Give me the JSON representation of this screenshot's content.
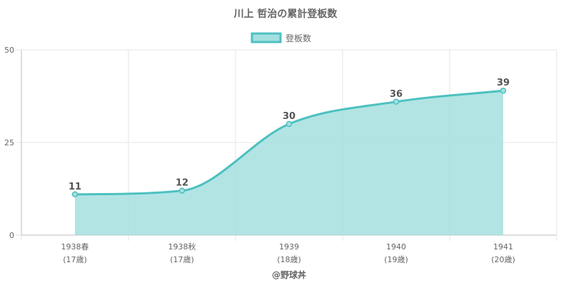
{
  "chart_data": {
    "type": "area",
    "title": "川上 哲治の累計登板数",
    "legend": {
      "position": "top",
      "label": "登板数"
    },
    "categories": [
      [
        "1938春",
        "(17歳)"
      ],
      [
        "1938秋",
        "(17歳)"
      ],
      [
        "1939",
        "(18歳)"
      ],
      [
        "1940",
        "(19歳)"
      ],
      [
        "1941",
        "(20歳)"
      ]
    ],
    "series": [
      {
        "name": "登板数",
        "values": [
          11,
          12,
          30,
          36,
          39
        ]
      }
    ],
    "ylim": [
      0,
      50
    ],
    "yticks": [
      0,
      25,
      50
    ],
    "grid": true,
    "colors": {
      "line": "#4dc0c0",
      "fill": "#a4dfdf",
      "grid": "#e6e6e6",
      "axis": "#bdbdbd"
    }
  },
  "footer": "@野球丼"
}
